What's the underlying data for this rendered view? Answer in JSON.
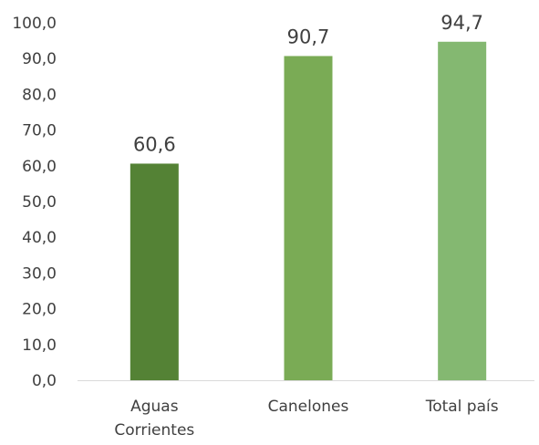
{
  "chart_data": {
    "type": "bar",
    "title": "",
    "xlabel": "",
    "ylabel": "",
    "categories": [
      [
        "Aguas",
        "Corrientes"
      ],
      [
        "Canelones"
      ],
      [
        "Total país"
      ]
    ],
    "values": [
      60.6,
      90.7,
      94.7
    ],
    "value_labels": [
      "60,6",
      "90,7",
      "94,7"
    ],
    "bar_colors": [
      "#548235",
      "#7aab55",
      "#84b871"
    ],
    "ylim": [
      0,
      100
    ],
    "yticks": [
      0,
      10,
      20,
      30,
      40,
      50,
      60,
      70,
      80,
      90,
      100
    ],
    "ytick_labels": [
      "0,0",
      "10,0",
      "20,0",
      "30,0",
      "40,0",
      "50,0",
      "60,0",
      "70,0",
      "80,0",
      "90,0",
      "100,0"
    ],
    "grid": false,
    "legend": "none",
    "axis_color": "#d9d9d9"
  }
}
